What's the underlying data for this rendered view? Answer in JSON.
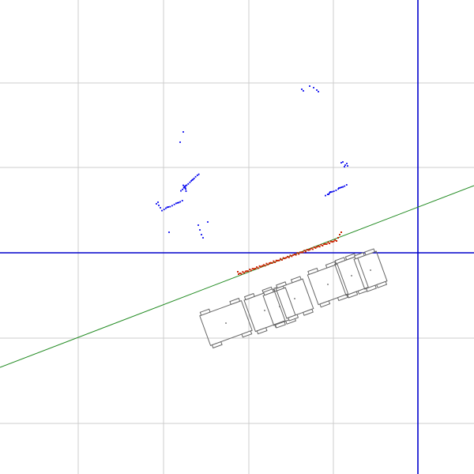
{
  "view": {
    "type": "top-down-lidar-visualization",
    "background": "#ffffff"
  },
  "grid": {
    "visible": true,
    "color": "#cccccc"
  },
  "axes": {
    "x_axis_color": "#0000cc",
    "y_axis_color": "#0000cc"
  },
  "reference_line": {
    "color": "#228b22"
  },
  "point_clouds": [
    {
      "name": "obstacle-points",
      "color": "#0000ee"
    },
    {
      "name": "ground-line-points",
      "color": "#cc2200"
    }
  ],
  "robot_path": {
    "pose_count": 7,
    "stroke": "#666666",
    "fill": "none"
  }
}
